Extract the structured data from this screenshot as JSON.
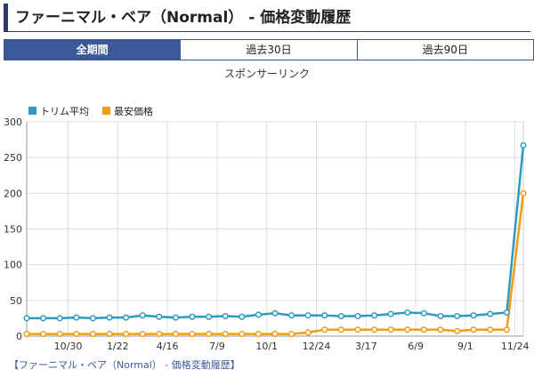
{
  "page": {
    "title": "ファーニマル・ベア（Normal） - 価格変動履歴",
    "tabs": [
      {
        "label": "全期間",
        "active": true
      },
      {
        "label": "過去30日",
        "active": false
      },
      {
        "label": "過去90日",
        "active": false
      }
    ],
    "sponsor_text": "スポンサーリンク",
    "footer_link": "【ファーニマル・ベア（Normal） - 価格変動履歴】"
  },
  "chart_data": {
    "type": "line",
    "legend_position": "top-left",
    "grid": true,
    "ylim": [
      0,
      300
    ],
    "yticks": [
      0,
      50,
      100,
      150,
      200,
      250,
      300
    ],
    "x_tick_labels": [
      {
        "label": "10/30",
        "index": 3
      },
      {
        "label": "1/22",
        "index": 6
      },
      {
        "label": "4/16",
        "index": 9
      },
      {
        "label": "7/9",
        "index": 12
      },
      {
        "label": "10/1",
        "index": 15
      },
      {
        "label": "12/24",
        "index": 18
      },
      {
        "label": "3/17",
        "index": 21
      },
      {
        "label": "6/9",
        "index": 24
      },
      {
        "label": "9/1",
        "index": 27
      },
      {
        "label": "11/24",
        "index": 30
      }
    ],
    "series": [
      {
        "name": "トリム平均",
        "color": "#2e9ac4",
        "values": [
          25,
          25,
          25,
          26,
          25,
          26,
          26,
          29,
          27,
          26,
          27,
          27,
          28,
          27,
          30,
          32,
          29,
          29,
          29,
          28,
          28,
          29,
          31,
          33,
          32,
          28,
          28,
          29,
          31,
          33,
          267
        ]
      },
      {
        "name": "最安価格",
        "color": "#f39c12",
        "values": [
          3,
          3,
          3,
          3,
          3,
          3,
          3,
          3,
          3,
          3,
          3,
          3,
          3,
          3,
          3,
          3,
          3,
          5,
          9,
          9,
          9,
          9,
          9,
          9,
          9,
          9,
          7,
          9,
          9,
          9,
          200
        ]
      }
    ]
  }
}
